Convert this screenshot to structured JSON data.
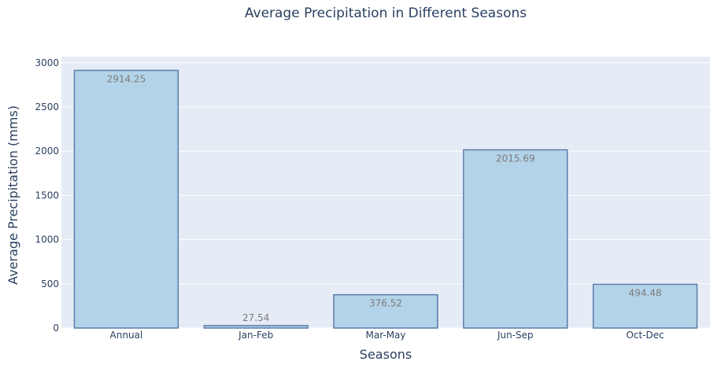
{
  "chart_data": {
    "type": "bar",
    "title": "Average Precipitation in Different Seasons",
    "xlabel": "Seasons",
    "ylabel": "Average Precipitation (mms)",
    "categories": [
      "Annual",
      "Jan-Feb",
      "Mar-May",
      "Jun-Sep",
      "Oct-Dec"
    ],
    "values": [
      2914.25,
      27.54,
      376.52,
      2015.69,
      494.48
    ],
    "value_labels": [
      "2914.25",
      "27.54",
      "376.52",
      "2015.69",
      "494.48"
    ],
    "ylim": [
      0,
      3070
    ],
    "yticks": [
      0,
      500,
      1000,
      1500,
      2000,
      2500,
      3000
    ],
    "ytick_labels": [
      "0",
      "500",
      "1000",
      "1500",
      "2000",
      "2500",
      "3000"
    ],
    "grid": true,
    "legend": "none",
    "colors": {
      "plot_bg": "#e5ecf6",
      "bar_fill": "#b3d4e8",
      "bar_stroke": "#5b7bab",
      "text": "#2a3f5f",
      "label": "#7b7b7b"
    }
  }
}
